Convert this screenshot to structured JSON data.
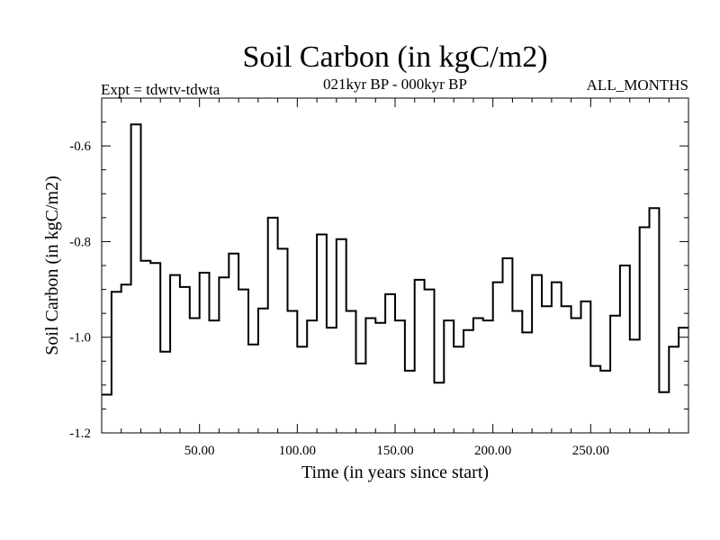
{
  "chart_data": {
    "type": "line",
    "style": "step",
    "title": "Soil Carbon (in kgC/m2)",
    "subtitle_left": "Expt = tdwtv-tdwta",
    "subtitle_center": "021kyr BP - 000kyr BP",
    "subtitle_right": "ALL_MONTHS",
    "xlabel": "Time (in years since start)",
    "ylabel": "Soil Carbon (in kgC/m2)",
    "xlim": [
      0,
      300
    ],
    "ylim": [
      -1.2,
      -0.5
    ],
    "xticks": [
      50,
      100,
      150,
      200,
      250
    ],
    "xtick_labels": [
      "50.00",
      "100.00",
      "150.00",
      "200.00",
      "250.00"
    ],
    "yticks": [
      -1.2,
      -1.0,
      -0.8,
      -0.6
    ],
    "ytick_labels": [
      "-1.2",
      "-1.0",
      "-0.8",
      "-0.6"
    ],
    "step_width": 5,
    "x_start": 0,
    "values": [
      -1.12,
      -0.905,
      -0.89,
      -0.555,
      -0.84,
      -0.845,
      -1.03,
      -0.87,
      -0.895,
      -0.96,
      -0.865,
      -0.965,
      -0.875,
      -0.825,
      -0.9,
      -1.015,
      -0.94,
      -0.75,
      -0.815,
      -0.945,
      -1.02,
      -0.965,
      -0.785,
      -0.98,
      -0.795,
      -0.945,
      -1.055,
      -0.96,
      -0.97,
      -0.91,
      -0.965,
      -1.07,
      -0.88,
      -0.9,
      -1.095,
      -0.965,
      -1.02,
      -0.985,
      -0.96,
      -0.965,
      -0.885,
      -0.835,
      -0.945,
      -0.99,
      -0.87,
      -0.935,
      -0.885,
      -0.935,
      -0.96,
      -0.925,
      -1.06,
      -1.07,
      -0.955,
      -0.85,
      -1.005,
      -0.77,
      -0.73,
      -1.115,
      -1.02,
      -0.98
    ]
  }
}
